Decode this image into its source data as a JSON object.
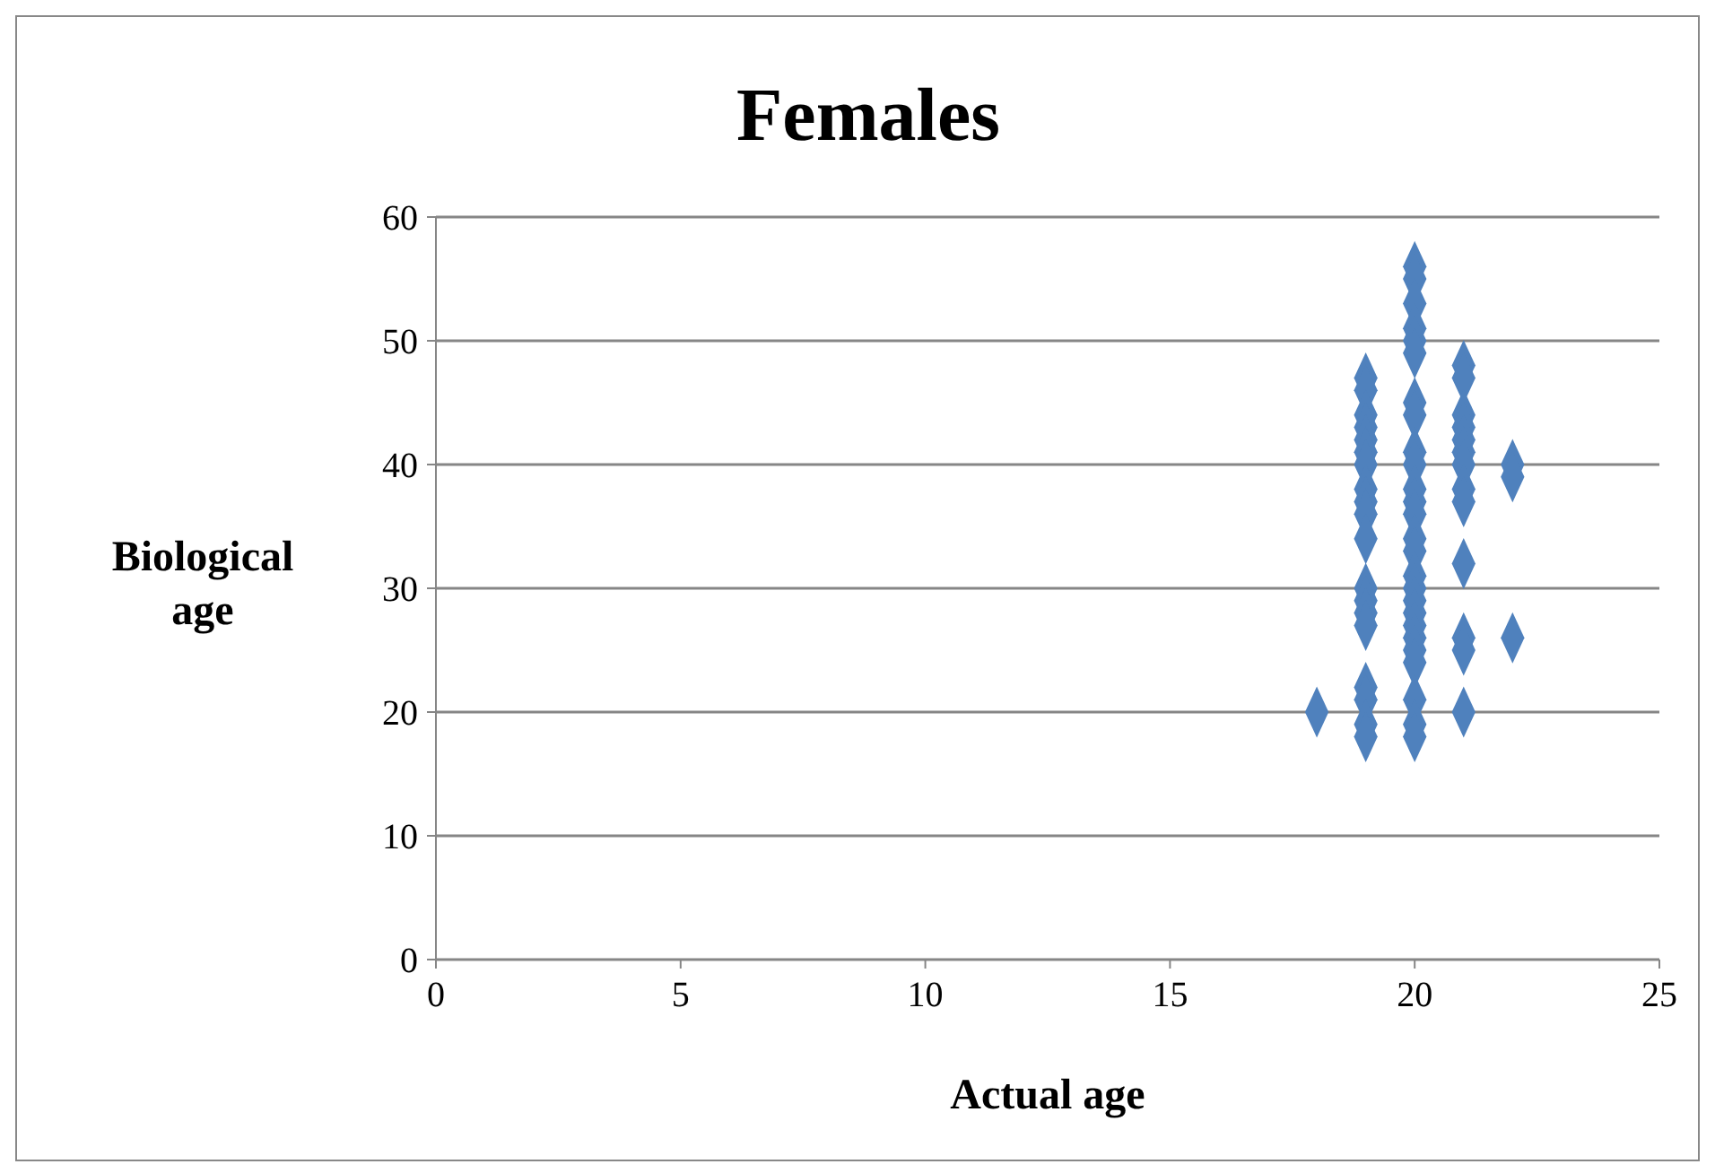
{
  "chart_data": {
    "type": "scatter",
    "title": "Females",
    "xlabel": "Actual age",
    "ylabel": "Biological age",
    "x": [
      18,
      19,
      19,
      19,
      19,
      19,
      19,
      19,
      19,
      19,
      19,
      19,
      19,
      19,
      19,
      19,
      19,
      19,
      19,
      19,
      20,
      20,
      20,
      20,
      20,
      20,
      20,
      20,
      20,
      20,
      20,
      20,
      20,
      20,
      20,
      20,
      20,
      20,
      20,
      20,
      20,
      20,
      20,
      20,
      20,
      20,
      21,
      21,
      21,
      21,
      21,
      21,
      21,
      21,
      21,
      21,
      21,
      21,
      21,
      22,
      22,
      22
    ],
    "values": [
      20,
      47,
      46,
      44,
      43,
      42,
      41,
      40,
      38,
      37,
      36,
      34,
      30,
      29,
      28,
      27,
      22,
      21,
      19,
      18,
      56,
      55,
      53,
      51,
      50,
      49,
      45,
      44,
      41,
      40,
      38,
      37,
      36,
      34,
      33,
      31,
      30,
      29,
      28,
      27,
      26,
      25,
      24,
      21,
      19,
      18,
      48,
      47,
      44,
      43,
      42,
      41,
      40,
      38,
      37,
      32,
      26,
      25,
      20,
      40,
      39,
      26
    ],
    "color": "#4f81bd",
    "marker": "diamond",
    "xlim": [
      0,
      25
    ],
    "ylim": [
      0,
      60
    ],
    "xticks": [
      0,
      5,
      10,
      15,
      20,
      25
    ],
    "yticks": [
      0,
      10,
      20,
      30,
      40,
      50,
      60
    ],
    "grid": "y"
  }
}
